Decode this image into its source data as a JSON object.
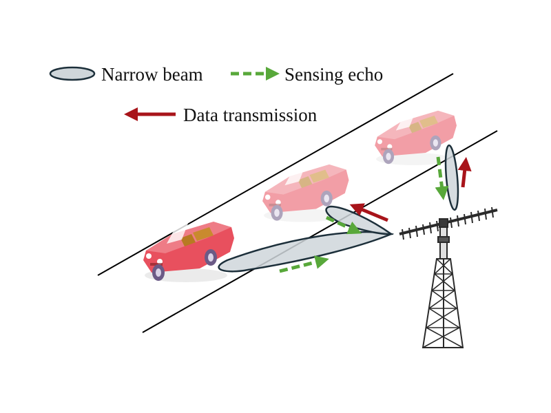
{
  "legend": {
    "narrow_beam": "Narrow beam",
    "sensing_echo": "Sensing echo",
    "data_transmission": "Data transmission"
  },
  "colors": {
    "road_line": "#000000",
    "beam_fill": "#cfd6da",
    "beam_stroke": "#1c2f3a",
    "echo_arrow": "#58a83a",
    "data_arrow": "#a8141a",
    "car_body": "#e8505e",
    "car_ghost": "#f29aa3",
    "tower": "#2a2a2a"
  },
  "icons": {
    "vehicle": "convertible-car-icon",
    "base_station": "antenna-tower-icon"
  }
}
